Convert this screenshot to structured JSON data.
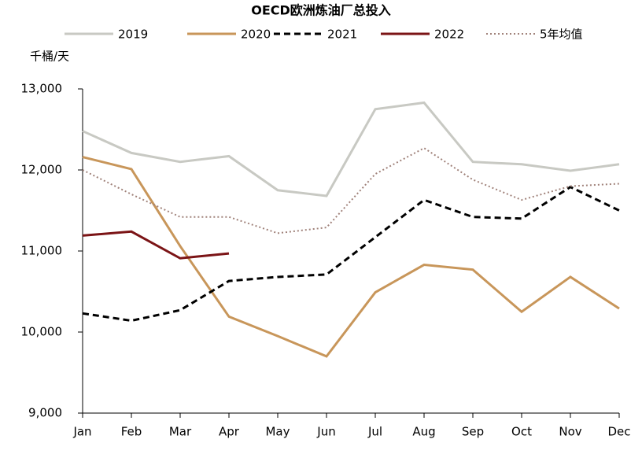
{
  "chart_data": {
    "type": "line",
    "title": "OECD欧洲炼油厂总投入",
    "ylabel": "千桶/天",
    "categories": [
      "Jan",
      "Feb",
      "Mar",
      "Apr",
      "May",
      "Jun",
      "Jul",
      "Aug",
      "Sep",
      "Oct",
      "Nov",
      "Dec"
    ],
    "ylim": [
      9000,
      13000
    ],
    "yticks": [
      {
        "value": 9000,
        "label": "9,000"
      },
      {
        "value": 10000,
        "label": "10,000"
      },
      {
        "value": 11000,
        "label": "11,000"
      },
      {
        "value": 12000,
        "label": "12,000"
      },
      {
        "value": 13000,
        "label": "13,000"
      }
    ],
    "grid": false,
    "series": [
      {
        "name": "2019",
        "color": "#c8c9c3",
        "line_style": "solid",
        "values": [
          12480,
          12210,
          12100,
          12170,
          11750,
          11680,
          12750,
          12830,
          12100,
          12070,
          11990,
          12070
        ]
      },
      {
        "name": "2020",
        "color": "#c8965a",
        "line_style": "solid",
        "values": [
          12160,
          12010,
          11060,
          10190,
          9950,
          9700,
          10490,
          10830,
          10770,
          10250,
          10680,
          10290
        ]
      },
      {
        "name": "2021",
        "color": "#000000",
        "line_style": "dashed",
        "values": [
          10230,
          10140,
          10270,
          10630,
          10680,
          10710,
          11170,
          11630,
          11420,
          11400,
          11790,
          11500
        ]
      },
      {
        "name": "2022",
        "color": "#7b1416",
        "line_style": "solid",
        "values": [
          11190,
          11240,
          10910,
          10970,
          null,
          null,
          null,
          null,
          null,
          null,
          null,
          null
        ]
      },
      {
        "name": "5年均值",
        "color": "#a0827a",
        "line_style": "dotted",
        "values": [
          12000,
          11700,
          11420,
          11420,
          11220,
          11290,
          11950,
          12270,
          11880,
          11630,
          11800,
          11830
        ]
      }
    ]
  }
}
